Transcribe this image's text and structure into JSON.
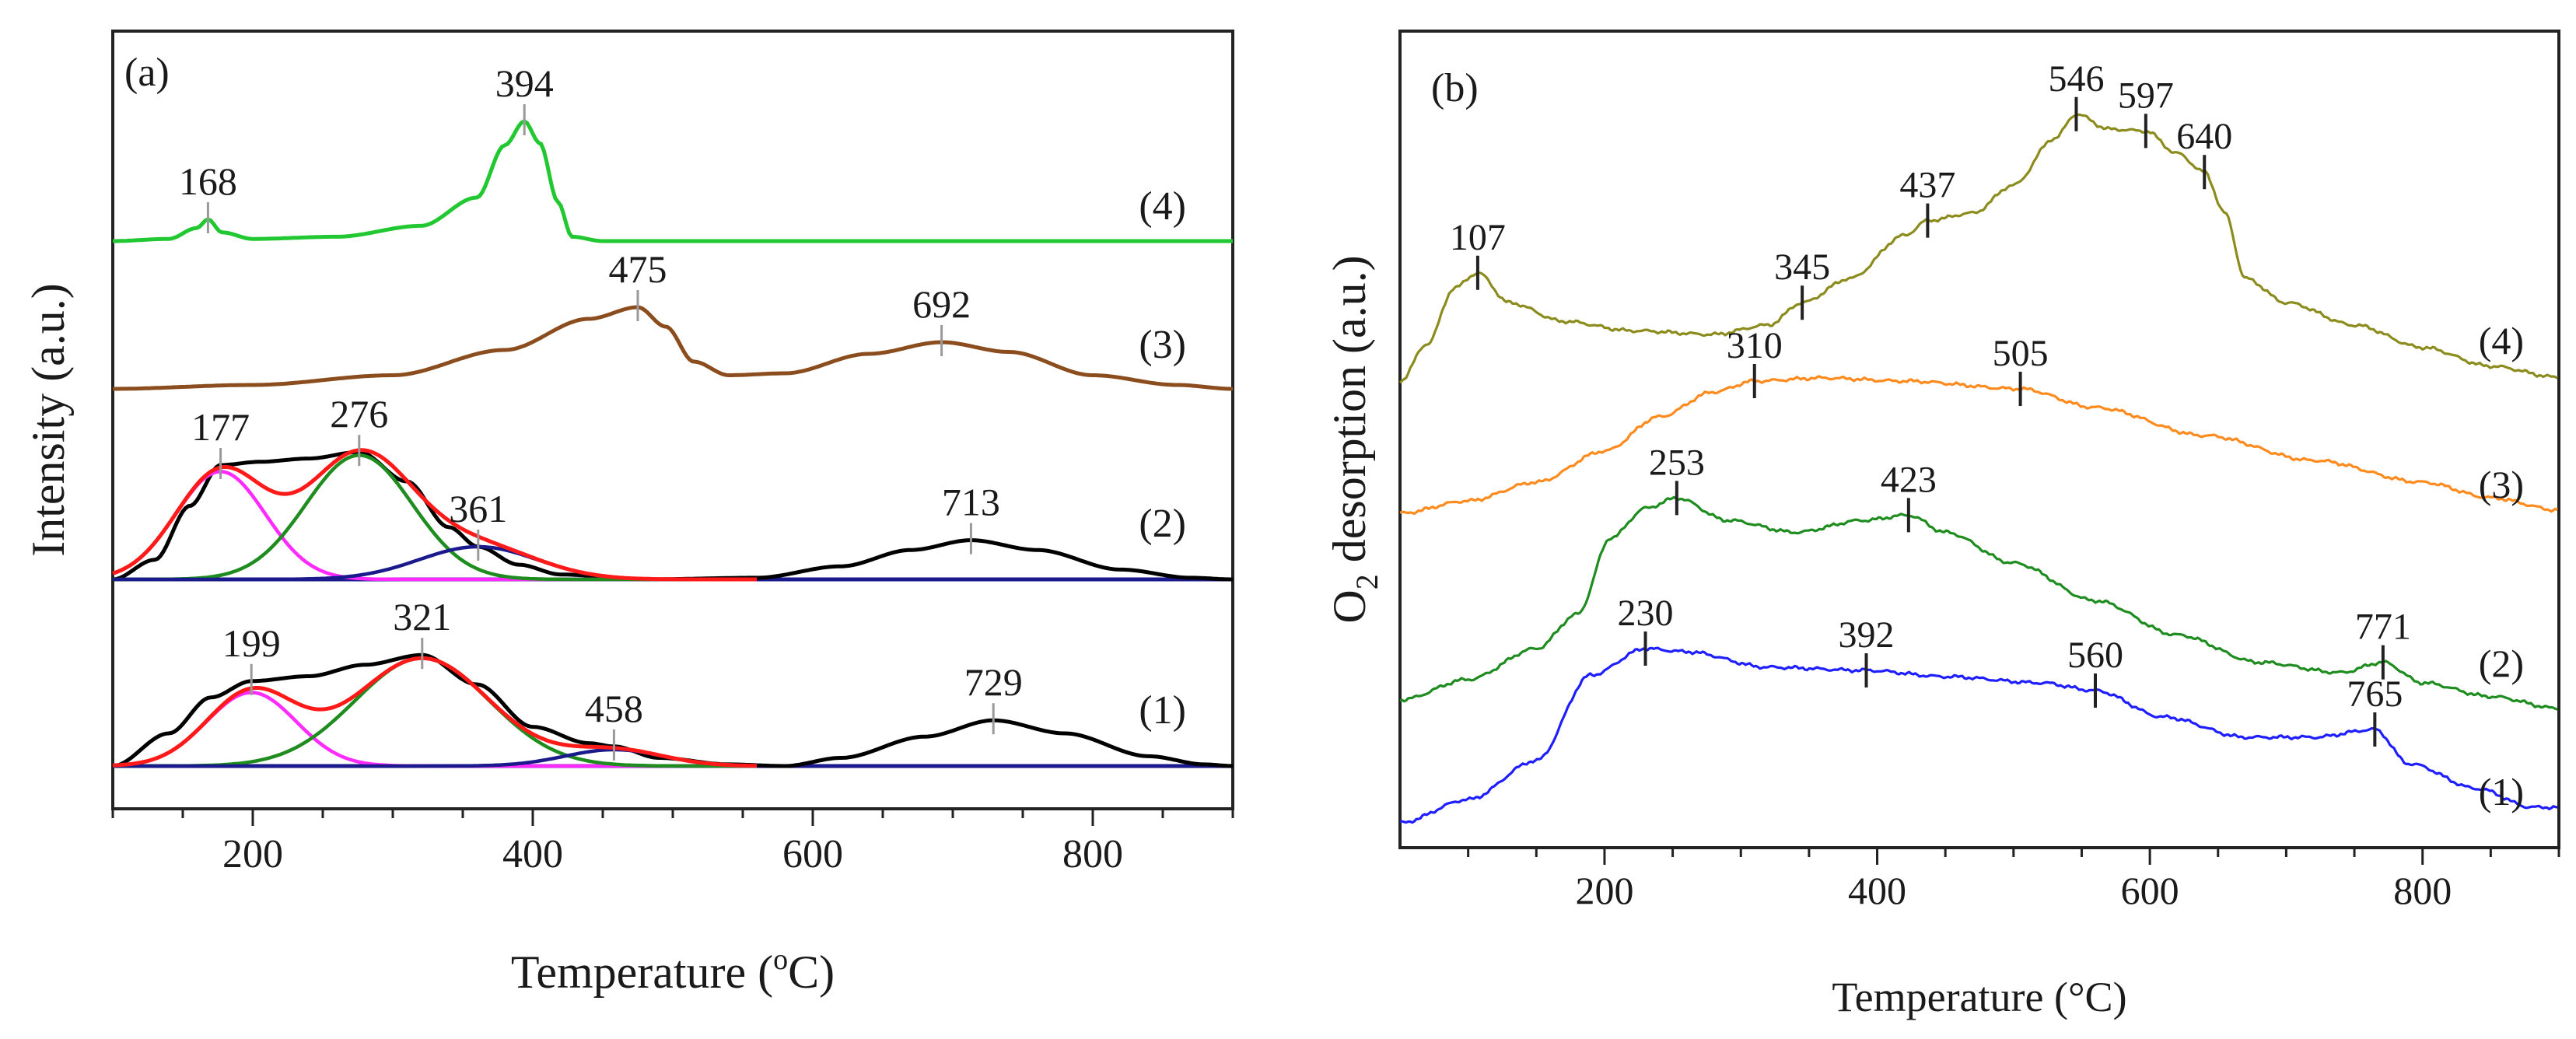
{
  "chart_data": [
    {
      "panel_label": "(a)",
      "type": "line",
      "xlabel": "Temperature (°C)",
      "xlabel_main": "Temperature (",
      "xlabel_sup": "o",
      "xlabel_end": "C)",
      "ylabel": "Intensity (a.u.)",
      "xlim": [
        100,
        900
      ],
      "x_ticks": [
        200,
        400,
        600,
        800
      ],
      "x_tick_labels": [
        "200",
        "400",
        "600",
        "800"
      ],
      "y_ticks_shown": false,
      "grid": false,
      "legend": "none",
      "series": [
        {
          "label": "(4)",
          "color": "#22c832",
          "role": "measured",
          "points": [
            [
              100,
              0
            ],
            [
              140,
              0.01
            ],
            [
              160,
              0.06
            ],
            [
              168,
              0.1
            ],
            [
              178,
              0.04
            ],
            [
              200,
              0.01
            ],
            [
              260,
              0.02
            ],
            [
              320,
              0.07
            ],
            [
              360,
              0.2
            ],
            [
              380,
              0.44
            ],
            [
              394,
              0.55
            ],
            [
              405,
              0.45
            ],
            [
              418,
              0.18
            ],
            [
              428,
              0.02
            ],
            [
              450,
              0
            ],
            [
              900,
              0
            ]
          ],
          "peaks": [
            {
              "x": 168,
              "label": "168",
              "y": 0.1
            },
            {
              "x": 394,
              "label": "394",
              "y": 0.55
            }
          ]
        },
        {
          "label": "(3)",
          "color": "#8b4c1e",
          "role": "measured",
          "points": [
            [
              100,
              0
            ],
            [
              200,
              0.02
            ],
            [
              300,
              0.07
            ],
            [
              380,
              0.2
            ],
            [
              440,
              0.36
            ],
            [
              475,
              0.42
            ],
            [
              495,
              0.32
            ],
            [
              515,
              0.14
            ],
            [
              540,
              0.07
            ],
            [
              580,
              0.08
            ],
            [
              640,
              0.18
            ],
            [
              692,
              0.24
            ],
            [
              740,
              0.19
            ],
            [
              800,
              0.07
            ],
            [
              860,
              0.02
            ],
            [
              900,
              0
            ]
          ],
          "peaks": [
            {
              "x": 475,
              "label": "475",
              "y": 0.42
            },
            {
              "x": 692,
              "label": "692",
              "y": 0.24
            }
          ]
        },
        {
          "label": "(2)",
          "color": "#000000",
          "role": "measured",
          "points": [
            [
              100,
              0
            ],
            [
              130,
              0.12
            ],
            [
              155,
              0.45
            ],
            [
              177,
              0.7
            ],
            [
              205,
              0.72
            ],
            [
              240,
              0.74
            ],
            [
              276,
              0.78
            ],
            [
              310,
              0.6
            ],
            [
              340,
              0.32
            ],
            [
              361,
              0.2
            ],
            [
              390,
              0.09
            ],
            [
              420,
              0.03
            ],
            [
              480,
              0
            ],
            [
              560,
              0.01
            ],
            [
              620,
              0.08
            ],
            [
              670,
              0.18
            ],
            [
              713,
              0.24
            ],
            [
              760,
              0.18
            ],
            [
              820,
              0.06
            ],
            [
              870,
              0.01
            ],
            [
              900,
              0
            ]
          ],
          "peaks": [
            {
              "x": 177,
              "label": "177",
              "y": 0.7
            },
            {
              "x": 276,
              "label": "276",
              "y": 0.78
            },
            {
              "x": 361,
              "label": "361",
              "y": 0.2
            },
            {
              "x": 713,
              "label": "713",
              "y": 0.24
            }
          ]
        },
        {
          "label": "(1)",
          "color": "#000000",
          "role": "measured",
          "points": [
            [
              100,
              0
            ],
            [
              140,
              0.2
            ],
            [
              170,
              0.42
            ],
            [
              199,
              0.52
            ],
            [
              240,
              0.55
            ],
            [
              280,
              0.62
            ],
            [
              321,
              0.68
            ],
            [
              360,
              0.5
            ],
            [
              400,
              0.24
            ],
            [
              440,
              0.14
            ],
            [
              458,
              0.12
            ],
            [
              490,
              0.05
            ],
            [
              540,
              0.01
            ],
            [
              580,
              0
            ],
            [
              620,
              0.05
            ],
            [
              680,
              0.18
            ],
            [
              729,
              0.28
            ],
            [
              780,
              0.2
            ],
            [
              840,
              0.06
            ],
            [
              880,
              0.01
            ],
            [
              900,
              0
            ]
          ],
          "peaks": [
            {
              "x": 199,
              "label": "199",
              "y": 0.52
            },
            {
              "x": 321,
              "label": "321",
              "y": 0.68
            },
            {
              "x": 458,
              "label": "458",
              "y": 0.12
            },
            {
              "x": 729,
              "label": "729",
              "y": 0.28
            }
          ]
        }
      ],
      "fits": [
        {
          "curve": "(2)",
          "color": "#ff2aff",
          "role": "fit",
          "center": 177,
          "height": 0.66,
          "width": 32
        },
        {
          "curve": "(2)",
          "color": "#1e8c1e",
          "role": "fit",
          "center": 276,
          "height": 0.76,
          "width": 38
        },
        {
          "curve": "(2)",
          "color": "#1a1a8c",
          "role": "fit",
          "center": 361,
          "height": 0.2,
          "width": 42
        },
        {
          "curve": "(2)",
          "color": "#ff1a1a",
          "role": "fit-sum"
        },
        {
          "curve": "(1)",
          "color": "#ff2aff",
          "role": "fit",
          "center": 199,
          "height": 0.45,
          "width": 32
        },
        {
          "curve": "(1)",
          "color": "#1e8c1e",
          "role": "fit",
          "center": 321,
          "height": 0.66,
          "width": 48
        },
        {
          "curve": "(1)",
          "color": "#1a1a8c",
          "role": "fit",
          "center": 458,
          "height": 0.1,
          "width": 35
        },
        {
          "curve": "(1)",
          "color": "#ff1a1a",
          "role": "fit-sum"
        }
      ]
    },
    {
      "panel_label": "(b)",
      "type": "line",
      "xlabel": "Temperature (°C)",
      "ylabel": "O2 desorption (a.u.)",
      "ylabel_main": "O",
      "ylabel_sub": "2",
      "ylabel_end": " desorption (a.u.)",
      "xlim": [
        50,
        900
      ],
      "x_ticks": [
        200,
        400,
        600,
        800
      ],
      "x_tick_labels": [
        "200",
        "400",
        "600",
        "800"
      ],
      "y_ticks_shown": false,
      "grid": false,
      "legend": "none",
      "series": [
        {
          "label": "(4)",
          "color": "#8c8c1e",
          "points": [
            [
              50,
              0
            ],
            [
              70,
              0.2
            ],
            [
              90,
              0.5
            ],
            [
              107,
              0.58
            ],
            [
              130,
              0.42
            ],
            [
              170,
              0.32
            ],
            [
              220,
              0.27
            ],
            [
              280,
              0.25
            ],
            [
              320,
              0.3
            ],
            [
              345,
              0.42
            ],
            [
              380,
              0.55
            ],
            [
              420,
              0.78
            ],
            [
              437,
              0.86
            ],
            [
              470,
              0.9
            ],
            [
              500,
              1.05
            ],
            [
              530,
              1.3
            ],
            [
              546,
              1.43
            ],
            [
              570,
              1.35
            ],
            [
              597,
              1.34
            ],
            [
              620,
              1.22
            ],
            [
              640,
              1.12
            ],
            [
              655,
              0.9
            ],
            [
              670,
              0.55
            ],
            [
              700,
              0.42
            ],
            [
              750,
              0.3
            ],
            [
              800,
              0.18
            ],
            [
              850,
              0.08
            ],
            [
              900,
              0.02
            ]
          ],
          "peaks": [
            {
              "x": 107,
              "label": "107",
              "y": 0.58
            },
            {
              "x": 345,
              "label": "345",
              "y": 0.42
            },
            {
              "x": 437,
              "label": "437",
              "y": 0.86
            },
            {
              "x": 546,
              "label": "546",
              "y": 1.43
            },
            {
              "x": 597,
              "label": "597",
              "y": 1.34
            },
            {
              "x": 640,
              "label": "640",
              "y": 1.12
            }
          ]
        },
        {
          "label": "(3)",
          "color": "#ff8a1e",
          "points": [
            [
              50,
              0
            ],
            [
              100,
              0.08
            ],
            [
              150,
              0.2
            ],
            [
              200,
              0.4
            ],
            [
              240,
              0.62
            ],
            [
              280,
              0.78
            ],
            [
              310,
              0.85
            ],
            [
              360,
              0.87
            ],
            [
              420,
              0.85
            ],
            [
              505,
              0.8
            ],
            [
              560,
              0.68
            ],
            [
              640,
              0.5
            ],
            [
              720,
              0.34
            ],
            [
              800,
              0.2
            ],
            [
              850,
              0.1
            ],
            [
              900,
              0.02
            ]
          ],
          "peaks": [
            {
              "x": 310,
              "label": "310",
              "y": 0.85
            },
            {
              "x": 505,
              "label": "505",
              "y": 0.8
            }
          ]
        },
        {
          "label": "(2)",
          "color": "#1e8c1e",
          "points": [
            [
              50,
              0
            ],
            [
              100,
              0.12
            ],
            [
              150,
              0.3
            ],
            [
              180,
              0.5
            ],
            [
              205,
              0.95
            ],
            [
              230,
              1.12
            ],
            [
              253,
              1.18
            ],
            [
              290,
              1.05
            ],
            [
              340,
              0.98
            ],
            [
              390,
              1.05
            ],
            [
              423,
              1.08
            ],
            [
              450,
              0.98
            ],
            [
              500,
              0.8
            ],
            [
              560,
              0.58
            ],
            [
              620,
              0.38
            ],
            [
              680,
              0.22
            ],
            [
              740,
              0.16
            ],
            [
              771,
              0.22
            ],
            [
              800,
              0.1
            ],
            [
              850,
              0.02
            ],
            [
              900,
              -0.05
            ]
          ],
          "peaks": [
            {
              "x": 253,
              "label": "253",
              "y": 1.18
            },
            {
              "x": 423,
              "label": "423",
              "y": 1.08
            },
            {
              "x": 771,
              "label": "771",
              "y": 0.22
            }
          ]
        },
        {
          "label": "(1)",
          "color": "#1e1eff",
          "points": [
            [
              50,
              0
            ],
            [
              100,
              0.15
            ],
            [
              150,
              0.4
            ],
            [
              190,
              0.95
            ],
            [
              230,
              1.12
            ],
            [
              260,
              1.1
            ],
            [
              320,
              1.0
            ],
            [
              392,
              0.98
            ],
            [
              450,
              0.94
            ],
            [
              520,
              0.9
            ],
            [
              560,
              0.85
            ],
            [
              610,
              0.68
            ],
            [
              670,
              0.55
            ],
            [
              720,
              0.55
            ],
            [
              765,
              0.6
            ],
            [
              790,
              0.38
            ],
            [
              840,
              0.22
            ],
            [
              880,
              0.1
            ],
            [
              900,
              0.1
            ]
          ],
          "peaks": [
            {
              "x": 230,
              "label": "230",
              "y": 1.12
            },
            {
              "x": 392,
              "label": "392",
              "y": 0.98
            },
            {
              "x": 560,
              "label": "560",
              "y": 0.85
            },
            {
              "x": 765,
              "label": "765",
              "y": 0.6
            }
          ]
        }
      ]
    }
  ]
}
